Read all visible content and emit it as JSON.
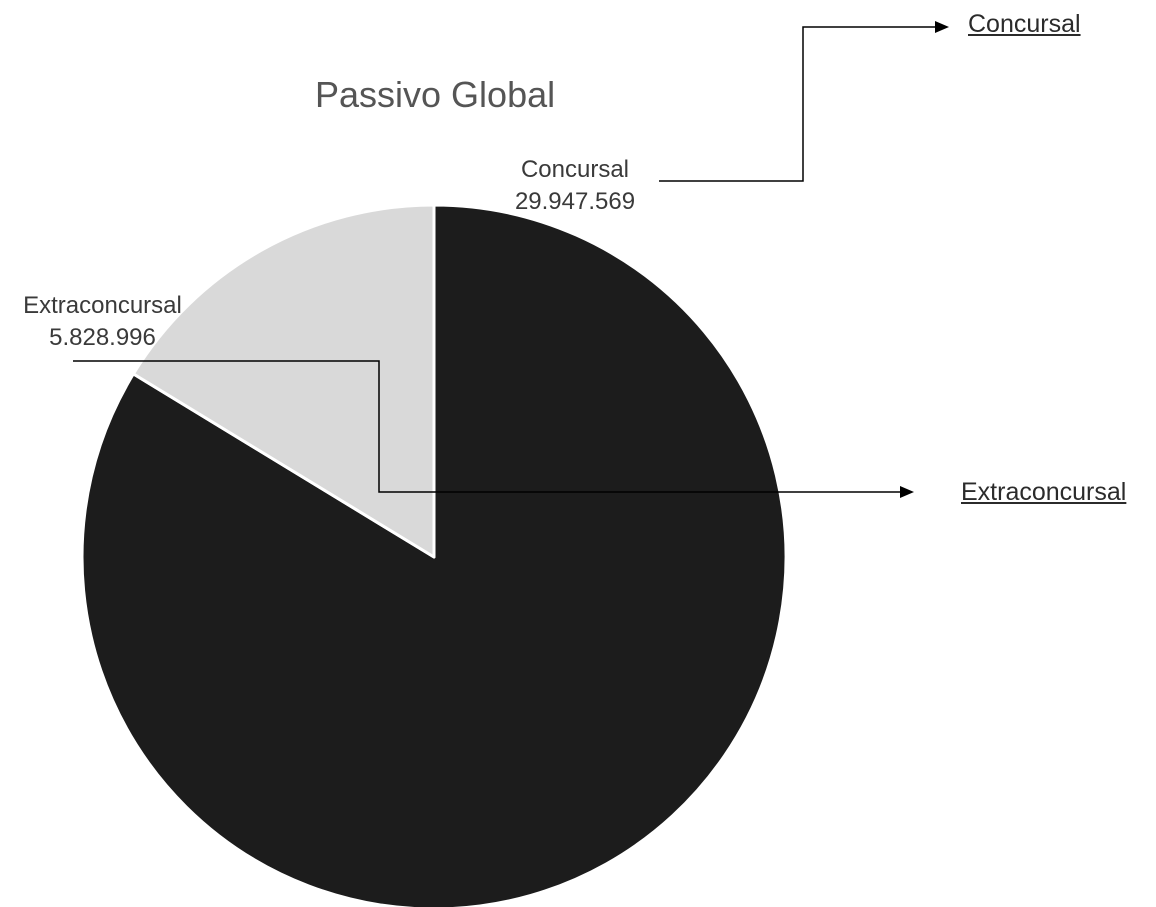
{
  "chart_data": {
    "type": "pie",
    "title": "Passivo Global",
    "slices": [
      {
        "label": "Concursal",
        "value": 29947569,
        "value_text": "29.947.569",
        "color": "#1c1c1c"
      },
      {
        "label": "Extraconcursal",
        "value": 5828996,
        "value_text": "5.828.996",
        "color": "#d9d9d9"
      }
    ]
  },
  "links": {
    "concursal": "Concursal",
    "extraconcursal": "Extraconcursal"
  }
}
